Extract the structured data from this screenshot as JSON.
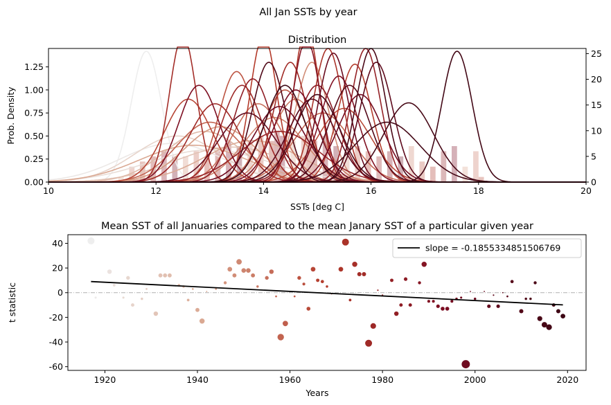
{
  "figure_title": "All Jan SSTs by year",
  "chart_data": [
    {
      "type": "area",
      "title": "Distribution",
      "xlabel": "SSTs [deg C]",
      "ylabel": "Prob. Density",
      "xlim": [
        10,
        20
      ],
      "ylim": [
        0,
        1.45
      ],
      "ylim_right": [
        0,
        26
      ],
      "x_ticks": [
        "10",
        "12",
        "14",
        "16",
        "18",
        "20"
      ],
      "y_ticks": [
        "0.00",
        "0.25",
        "0.50",
        "0.75",
        "1.00",
        "1.25"
      ],
      "y_ticks_right": [
        "0",
        "5",
        "10",
        "15",
        "20",
        "25"
      ],
      "legend": "none",
      "grid": false,
      "colormap": [
        "#eeeeee",
        "#d9a48c",
        "#b33a2a",
        "#7a0c22",
        "#3d0714"
      ],
      "series": [
        {
          "year": 1917,
          "mean": 11.82,
          "peak": 1.42
        },
        {
          "year": 1919,
          "mean": 12.3,
          "peak": 0.42
        },
        {
          "year": 1923,
          "mean": 13.0,
          "peak": 0.35
        },
        {
          "year": 1926,
          "mean": 12.4,
          "peak": 0.5
        },
        {
          "year": 1931,
          "mean": 13.4,
          "peak": 0.38
        },
        {
          "year": 1935,
          "mean": 12.9,
          "peak": 0.55
        },
        {
          "year": 1940,
          "mean": 13.8,
          "peak": 0.45
        },
        {
          "year": 1941,
          "mean": 12.7,
          "peak": 0.4
        },
        {
          "year": 1945,
          "mean": 13.2,
          "peak": 0.6
        },
        {
          "year": 1948,
          "mean": 14.9,
          "peak": 1.3
        },
        {
          "year": 1950,
          "mean": 14.2,
          "peak": 0.7
        },
        {
          "year": 1953,
          "mean": 14.6,
          "peak": 0.9
        },
        {
          "year": 1955,
          "mean": 13.9,
          "peak": 0.85
        },
        {
          "year": 1957,
          "mean": 15.1,
          "peak": 0.75
        },
        {
          "year": 1958,
          "mean": 13.0,
          "peak": 0.65
        },
        {
          "year": 1960,
          "mean": 14.4,
          "peak": 1.0
        },
        {
          "year": 1962,
          "mean": 13.5,
          "peak": 1.2
        },
        {
          "year": 1964,
          "mean": 15.5,
          "peak": 0.8
        },
        {
          "year": 1965,
          "mean": 12.6,
          "peak": 0.9
        },
        {
          "year": 1967,
          "mean": 15.7,
          "peak": 1.28
        },
        {
          "year": 1968,
          "mean": 14.0,
          "peak": 1.6
        },
        {
          "year": 1970,
          "mean": 14.8,
          "peak": 1.7
        },
        {
          "year": 1972,
          "mean": 15.2,
          "peak": 1.45
        },
        {
          "year": 1975,
          "mean": 12.5,
          "peak": 1.6
        },
        {
          "year": 1976,
          "mean": 14.5,
          "peak": 1.3
        },
        {
          "year": 1977,
          "mean": 13.1,
          "peak": 0.85
        },
        {
          "year": 1978,
          "mean": 13.6,
          "peak": 1.05
        },
        {
          "year": 1980,
          "mean": 14.3,
          "peak": 0.55
        },
        {
          "year": 1982,
          "mean": 15.9,
          "peak": 1.45
        },
        {
          "year": 1984,
          "mean": 13.8,
          "peak": 1.12
        },
        {
          "year": 1986,
          "mean": 15.0,
          "peak": 1.05
        },
        {
          "year": 1988,
          "mean": 14.8,
          "peak": 1.55
        },
        {
          "year": 1990,
          "mean": 15.4,
          "peak": 1.15
        },
        {
          "year": 1992,
          "mean": 12.8,
          "peak": 1.05
        },
        {
          "year": 1994,
          "mean": 14.6,
          "peak": 1.0
        },
        {
          "year": 1996,
          "mean": 15.8,
          "peak": 0.95
        },
        {
          "year": 1998,
          "mean": 14.3,
          "peak": 0.82
        },
        {
          "year": 2000,
          "mean": 15.3,
          "peak": 1.4
        },
        {
          "year": 2003,
          "mean": 13.7,
          "peak": 0.75
        },
        {
          "year": 2005,
          "mean": 16.1,
          "peak": 1.3
        },
        {
          "year": 2007,
          "mean": 14.9,
          "peak": 0.9
        },
        {
          "year": 2009,
          "mean": 15.6,
          "peak": 1.05
        },
        {
          "year": 2011,
          "mean": 14.1,
          "peak": 1.3
        },
        {
          "year": 2013,
          "mean": 16.0,
          "peak": 1.45
        },
        {
          "year": 2014,
          "mean": 15.0,
          "peak": 0.95
        },
        {
          "year": 2015,
          "mean": 16.7,
          "peak": 0.86
        },
        {
          "year": 2016,
          "mean": 16.3,
          "peak": 0.65
        },
        {
          "year": 2017,
          "mean": 17.6,
          "peak": 1.42
        },
        {
          "year": 2019,
          "mean": 14.4,
          "peak": 1.05
        }
      ],
      "histogram": {
        "bin_width": 0.1,
        "bars": [
          {
            "x": 11.3,
            "count": 1
          },
          {
            "x": 11.5,
            "count": 3
          },
          {
            "x": 11.7,
            "count": 4
          },
          {
            "x": 11.9,
            "count": 5
          },
          {
            "x": 12.1,
            "count": 6
          },
          {
            "x": 12.3,
            "count": 5
          },
          {
            "x": 12.5,
            "count": 5
          },
          {
            "x": 12.7,
            "count": 6
          },
          {
            "x": 12.9,
            "count": 5
          },
          {
            "x": 13.1,
            "count": 6
          },
          {
            "x": 13.3,
            "count": 8
          },
          {
            "x": 13.5,
            "count": 7
          },
          {
            "x": 13.7,
            "count": 8
          },
          {
            "x": 13.9,
            "count": 9
          },
          {
            "x": 14.1,
            "count": 8
          },
          {
            "x": 14.2,
            "count": 10
          },
          {
            "x": 14.3,
            "count": 9
          },
          {
            "x": 14.5,
            "count": 8
          },
          {
            "x": 14.7,
            "count": 9
          },
          {
            "x": 14.8,
            "count": 10
          },
          {
            "x": 14.9,
            "count": 8
          },
          {
            "x": 15.1,
            "count": 9
          },
          {
            "x": 15.3,
            "count": 7
          },
          {
            "x": 15.5,
            "count": 6
          },
          {
            "x": 15.7,
            "count": 7
          },
          {
            "x": 15.9,
            "count": 6
          },
          {
            "x": 16.1,
            "count": 5
          },
          {
            "x": 16.3,
            "count": 6
          },
          {
            "x": 16.5,
            "count": 5
          },
          {
            "x": 16.7,
            "count": 7
          },
          {
            "x": 16.9,
            "count": 4
          },
          {
            "x": 17.1,
            "count": 3
          },
          {
            "x": 17.3,
            "count": 6
          },
          {
            "x": 17.5,
            "count": 7
          },
          {
            "x": 17.7,
            "count": 3
          },
          {
            "x": 17.9,
            "count": 6
          },
          {
            "x": 18.0,
            "count": 1
          }
        ]
      }
    },
    {
      "type": "scatter",
      "title": "Mean SST of all Januaries compared to the mean Janary SST of a particular given year",
      "xlabel": "Years",
      "ylabel": "t statistic",
      "xlim": [
        1912,
        2024
      ],
      "ylim": [
        -63,
        47
      ],
      "x_ticks": [
        "1920",
        "1940",
        "1960",
        "1980",
        "2000",
        "2020"
      ],
      "y_ticks": [
        "40",
        "20",
        "0",
        "-20",
        "-40",
        "-60"
      ],
      "legend": "top-right",
      "legend_label": "slope = -0.1855334851506769",
      "zero_line": true,
      "trend": {
        "x": [
          1917,
          2019
        ],
        "y": [
          9.0,
          -9.9
        ]
      },
      "points": [
        {
          "year": 1917,
          "t": 42
        },
        {
          "year": 1918,
          "t": -4
        },
        {
          "year": 1921,
          "t": 17
        },
        {
          "year": 1922,
          "t": 6
        },
        {
          "year": 1924,
          "t": -4
        },
        {
          "year": 1925,
          "t": 12
        },
        {
          "year": 1926,
          "t": -10
        },
        {
          "year": 1928,
          "t": -5
        },
        {
          "year": 1929,
          "t": 3
        },
        {
          "year": 1931,
          "t": -17
        },
        {
          "year": 1932,
          "t": 14
        },
        {
          "year": 1933,
          "t": 14
        },
        {
          "year": 1934,
          "t": 14
        },
        {
          "year": 1936,
          "t": 6
        },
        {
          "year": 1937,
          "t": 5
        },
        {
          "year": 1938,
          "t": -6
        },
        {
          "year": 1939,
          "t": 3
        },
        {
          "year": 1940,
          "t": -14
        },
        {
          "year": 1941,
          "t": -23
        },
        {
          "year": 1942,
          "t": 1
        },
        {
          "year": 1944,
          "t": 3
        },
        {
          "year": 1946,
          "t": 8
        },
        {
          "year": 1947,
          "t": 19
        },
        {
          "year": 1948,
          "t": 14
        },
        {
          "year": 1949,
          "t": 25
        },
        {
          "year": 1950,
          "t": 18
        },
        {
          "year": 1951,
          "t": 18
        },
        {
          "year": 1952,
          "t": 14
        },
        {
          "year": 1953,
          "t": 5
        },
        {
          "year": 1955,
          "t": 12
        },
        {
          "year": 1956,
          "t": 17
        },
        {
          "year": 1957,
          "t": -3
        },
        {
          "year": 1958,
          "t": -36
        },
        {
          "year": 1959,
          "t": -25
        },
        {
          "year": 1960,
          "t": 1
        },
        {
          "year": 1961,
          "t": -3
        },
        {
          "year": 1962,
          "t": 12
        },
        {
          "year": 1963,
          "t": 7
        },
        {
          "year": 1964,
          "t": -13
        },
        {
          "year": 1965,
          "t": 19
        },
        {
          "year": 1966,
          "t": 10
        },
        {
          "year": 1967,
          "t": 9
        },
        {
          "year": 1968,
          "t": 5
        },
        {
          "year": 1969,
          "t": -1
        },
        {
          "year": 1971,
          "t": 19
        },
        {
          "year": 1972,
          "t": 41
        },
        {
          "year": 1973,
          "t": -6
        },
        {
          "year": 1974,
          "t": 23
        },
        {
          "year": 1975,
          "t": 15
        },
        {
          "year": 1976,
          "t": 15
        },
        {
          "year": 1977,
          "t": -41
        },
        {
          "year": 1978,
          "t": -27
        },
        {
          "year": 1979,
          "t": 2
        },
        {
          "year": 1980,
          "t": -2
        },
        {
          "year": 1982,
          "t": 10
        },
        {
          "year": 1983,
          "t": -17
        },
        {
          "year": 1984,
          "t": -10
        },
        {
          "year": 1985,
          "t": 11
        },
        {
          "year": 1986,
          "t": -10
        },
        {
          "year": 1988,
          "t": 8
        },
        {
          "year": 1989,
          "t": 23
        },
        {
          "year": 1990,
          "t": -7
        },
        {
          "year": 1991,
          "t": -7
        },
        {
          "year": 1992,
          "t": -11
        },
        {
          "year": 1993,
          "t": -13
        },
        {
          "year": 1994,
          "t": -13
        },
        {
          "year": 1995,
          "t": -7
        },
        {
          "year": 1996,
          "t": -5
        },
        {
          "year": 1997,
          "t": -4
        },
        {
          "year": 1998,
          "t": -58
        },
        {
          "year": 1999,
          "t": 1
        },
        {
          "year": 2000,
          "t": -5
        },
        {
          "year": 2002,
          "t": 1
        },
        {
          "year": 2003,
          "t": -11
        },
        {
          "year": 2004,
          "t": -2
        },
        {
          "year": 2005,
          "t": -11
        },
        {
          "year": 2006,
          "t": 0
        },
        {
          "year": 2007,
          "t": -3
        },
        {
          "year": 2008,
          "t": 9
        },
        {
          "year": 2010,
          "t": -15
        },
        {
          "year": 2011,
          "t": -5
        },
        {
          "year": 2012,
          "t": -5
        },
        {
          "year": 2013,
          "t": 8
        },
        {
          "year": 2014,
          "t": -21
        },
        {
          "year": 2015,
          "t": -26
        },
        {
          "year": 2016,
          "t": -28
        },
        {
          "year": 2017,
          "t": -10
        },
        {
          "year": 2018,
          "t": -15
        },
        {
          "year": 2019,
          "t": -19
        }
      ]
    }
  ]
}
